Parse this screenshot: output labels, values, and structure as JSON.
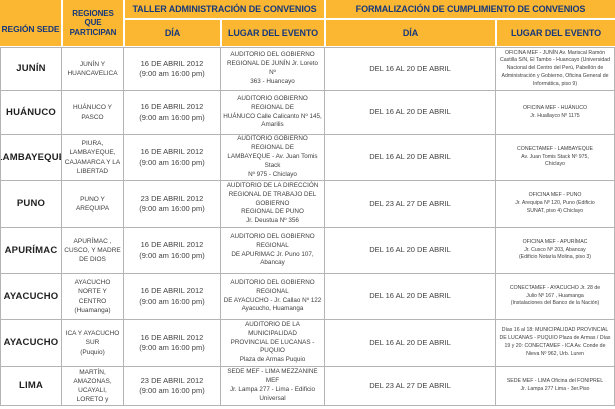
{
  "colors": {
    "header_bg": "#FBB731",
    "header_text": "#17387A",
    "body_text": "#3E3E3E",
    "region_text": "#1F1F1F",
    "border": "#B4B4B4"
  },
  "header": {
    "region": "REGIÓN SEDE",
    "participants": "REGIONES QUE\nPARTICIPAN",
    "taller_title": "TALLER  ADMINISTRACIÓN DE CONVENIOS",
    "formalizacion_title": "FORMALIZACIÓN DE CUMPLIMIENTO DE CONVENIOS",
    "taller_dia": "DÍA",
    "taller_lugar": "LUGAR DEL EVENTO",
    "form_dia": "DÍA",
    "form_lugar": "LUGAR DEL EVENTO"
  },
  "rows": [
    {
      "region": "JUNÍN",
      "participants": "JUNÍN Y\nHUANCAVELICA",
      "taller_dia": "16 DE ABRIL 2012\n(9:00 am 16:00 pm)",
      "taller_lugar": "AUDITORIO DEL GOBIERNO\nREGIONAL DE JUNÍN Jr. Loreto Nº\n363 - Huancayo",
      "form_dia": "DEL 16 AL 20 DE ABRIL",
      "form_lugar": "OFICINA MEF - JUNÍN Av. Mariscal Ramón Castilla S/N, El Tambo - Huancayo (Universidad Nacional del Centro del Perú, Pabellón de Administración y Gobierno, Oficina General de Informática, piso 9)"
    },
    {
      "region": "HUÁNUCO",
      "participants": "HUÁNUCO Y\nPASCO",
      "taller_dia": "16 DE ABRIL 2012\n(9:00 am 16:00 pm)",
      "taller_lugar": "AUDITORIO GOBIERNO REGIONAL DE\nHUÁNUCO Calle Calicanto Nº 145,\nAmarilis",
      "form_dia": "DEL 16 AL 20 DE ABRIL",
      "form_lugar": "OFICINA MEF - HUÁNUCO\nJr. Huallayco Nº 1175"
    },
    {
      "region": "LAMBAYEQUE",
      "participants": "PIURA, LAMBAYEQUE,\nCAJAMARCA Y LA\nLIBERTAD",
      "taller_dia": "16 DE ABRIL 2012\n(9:00 am 16:00 pm)",
      "taller_lugar": "AUDITORIO GOBIERNO REGIONAL DE\nLAMBAYEQUE - Av. Juan Tomis Stack\nNº 975 - Chiclayo",
      "form_dia": "DEL 16 AL 20 DE ABRIL",
      "form_lugar": "CONECTAMEF - LAMBAYEQUE\nAv. Juan Tomis Stack Nº 975,\nChiclayo"
    },
    {
      "region": "PUNO",
      "participants": "PUNO Y\nAREQUIPA",
      "taller_dia": "23 DE ABRIL 2012\n(9:00 am 16:00 pm)",
      "taller_lugar": "AUDITORIO DE LA DIRECCIÓN\nREGIONAL DE TRABAJO DEL GOBIERNO\nREGIONAL DE PUNO\nJr. Deustua Nº 356",
      "form_dia": "DEL 23 AL 27 DE ABRIL",
      "form_lugar": "OFICINA MEF - PUNO\nJr. Arequipa Nº 120, Puno (Edificio\nSUNAT, piso 4) Chiclayo"
    },
    {
      "region": "APURÍMAC",
      "participants": "APURÍMAC ,\nCUSCO, Y MADRE\nDE DIOS",
      "taller_dia": "16 DE ABRIL 2012\n(9:00 am 16:00 pm)",
      "taller_lugar": "AUDITORIO DEL GOBIERNO REGIONAL\nDE APURIMAC Jr. Puno 107, Abancay",
      "form_dia": "DEL 16 AL 20 DE ABRIL",
      "form_lugar": "OFICINA MEF - APURÍMAC\nJr. Cusco Nº 203, Abancay\n(Edificio Notaría Molina, piso 3)"
    },
    {
      "region": "AYACUCHO",
      "participants": "AYACUCHO\nNORTE Y CENTRO\n(Huamanga)",
      "taller_dia": "16 DE ABRIL 2012\n(9:00 am 16:00 pm)",
      "taller_lugar": "AUDITORIO DEL GOBIERNO REGIONAL\nDE AYACUCHO - Jr. Callao Nº 122\nAyacucho, Huamanga",
      "form_dia": "DEL 16 AL 20 DE ABRIL",
      "form_lugar": "CONECTAMEF - AYACUCHO Jr. 28 de\nJulio Nº 167 , Huamanga\n(Instalaciones del Banco de la Nación)"
    },
    {
      "region": "AYACUCHO",
      "participants": "ICA Y AYACUCHO\nSUR\n(Puquio)",
      "taller_dia": "16 DE ABRIL 2012\n(9:00 am 16:00 pm)",
      "taller_lugar": "AUDITORIO DE LA MUNICIPALIDAD\nPROVINCIAL DE LUCANAS - PUQUIO\nPlaza de Armas Puquio",
      "form_dia": "DEL 16 AL 20 DE ABRIL",
      "form_lugar": "Días 16 al 18: MUNICIPALIDAD PROVINCIAL DE LUCANAS - PUQUIO Plaza de Armas / Días 19 y 20: CONECTAMEF - ICA Av. Conde de Nieva Nº 962, Urb. Luren"
    },
    {
      "region": "LIMA",
      "participants": "LIMA, SAN MARTÍN,\nAMAZONAS, UCAYALI,\nLORETO y ANCASH",
      "taller_dia": "23 DE ABRIL 2012\n(9:00 am 16:00 pm)",
      "taller_lugar": "SEDE MEF - LIMA MEZZANINE MEF\nJr. Lampa 277 - Lima - Edificio\nUniversal",
      "form_dia": "DEL 23 AL 27 DE ABRIL",
      "form_lugar": "SEDE MEF - LIMA Oficina del FONIPREL\nJr. Lampa 277 Lima - 3er.Piso"
    }
  ]
}
